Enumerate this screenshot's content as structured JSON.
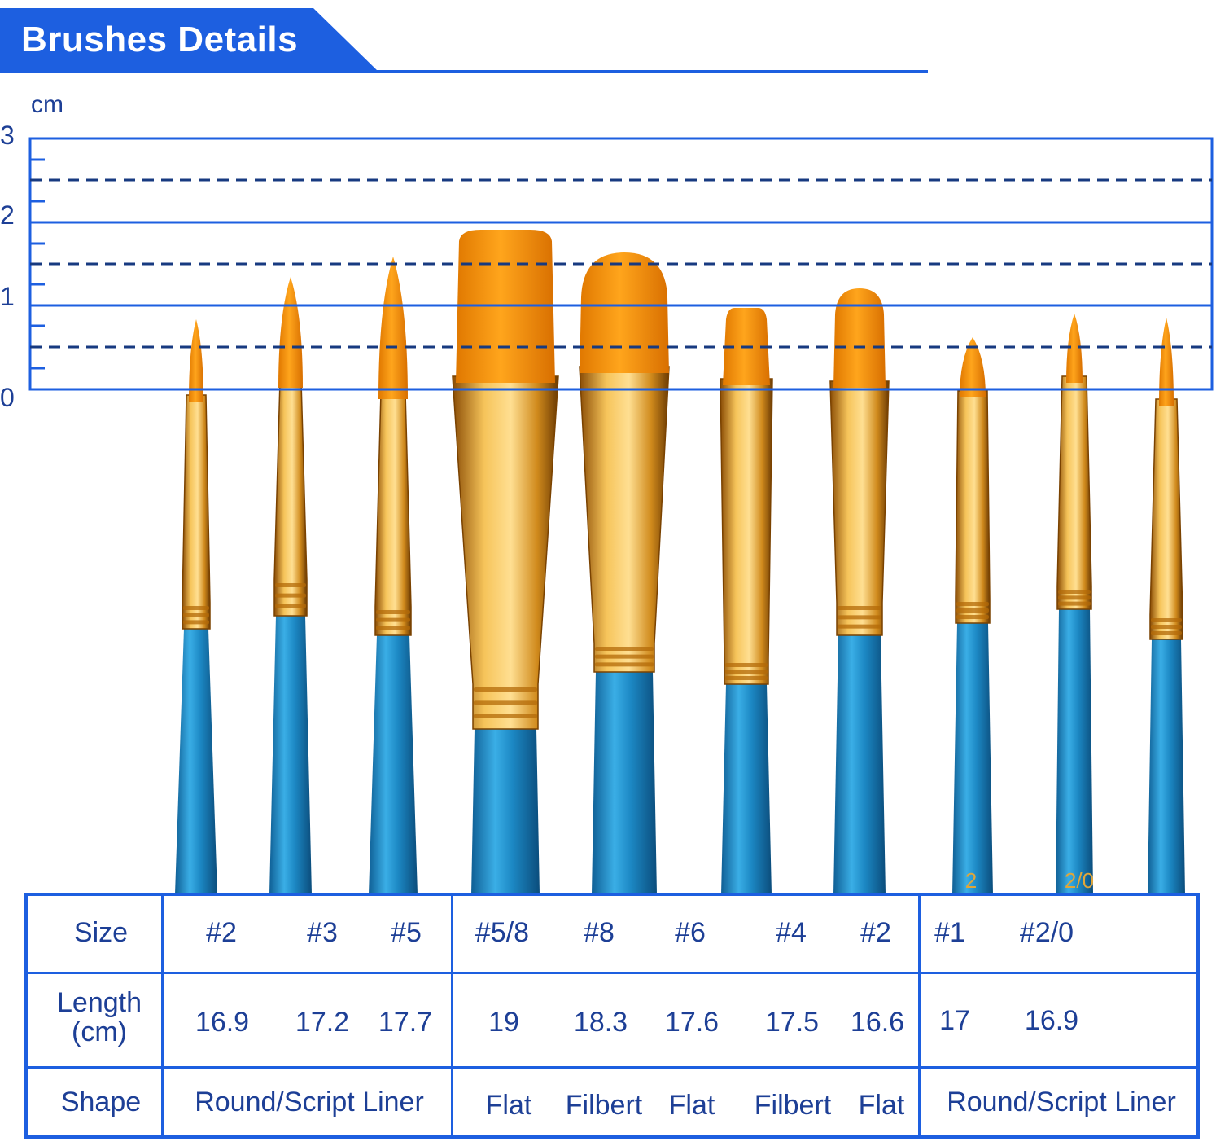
{
  "header": {
    "title": "Brushes Details"
  },
  "ruler": {
    "unit": "cm",
    "labels": [
      "3",
      "2",
      "1",
      "0"
    ]
  },
  "table": {
    "row_headers": {
      "size": "Size",
      "length": "Length\n(cm)",
      "shape": "Shape"
    },
    "sizes": [
      "#2",
      "#3",
      "#5",
      "#5/8",
      "#8",
      "#6",
      "#4",
      "#2",
      "#1",
      "#2/0"
    ],
    "lengths": [
      "16.9",
      "17.2",
      "17.7",
      "19",
      "18.3",
      "17.6",
      "17.5",
      "16.6",
      "17",
      "16.9"
    ],
    "shapes": [
      "Round/Script Liner",
      "Flat",
      "Filbert",
      "Flat",
      "Filbert",
      "Flat",
      "Round/Script Liner"
    ]
  },
  "colors": {
    "accent": "#1d5fe0",
    "text": "#1d3f96",
    "bristle": "#ff9a00",
    "ferrule": "#e9a93a",
    "handle": "#1f8ec8"
  },
  "brush_marks": {
    "handle_numbers": [
      "2",
      "2/0"
    ]
  }
}
